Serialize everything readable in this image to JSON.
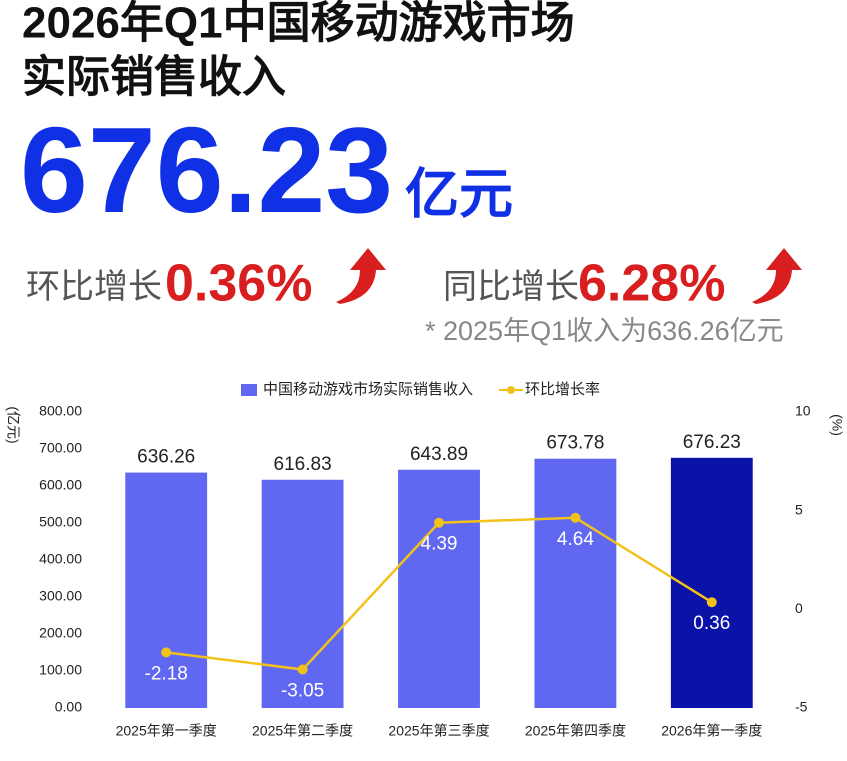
{
  "header": {
    "title_lines": [
      "2026年Q1中国移动游戏市场",
      "实际销售收入"
    ],
    "headline_value": "676.23",
    "headline_unit": "亿元",
    "qoq_label": "环比增长",
    "qoq_value": "0.36%",
    "yoy_label": "同比增长",
    "yoy_value": "6.28%",
    "footnote": "* 2025年Q1收入为636.26亿元"
  },
  "chart_data": {
    "type": "combo",
    "categories": [
      "2025年第一季度",
      "2025年第二季度",
      "2025年第三季度",
      "2025年第四季度",
      "2026年第一季度"
    ],
    "series": [
      {
        "name": "中国移动游戏市场实际销售收入",
        "type": "bar",
        "color": "#6068f2",
        "colors": [
          "#6068f2",
          "#6068f2",
          "#6068f2",
          "#6068f2",
          "#0a12a8"
        ],
        "values": [
          636.26,
          616.83,
          643.89,
          673.78,
          676.23
        ]
      },
      {
        "name": "环比增长率",
        "type": "line",
        "axis": "y2",
        "color": "#f2c21a",
        "values": [
          -2.18,
          -3.05,
          4.39,
          4.64,
          0.36
        ]
      }
    ],
    "y_label": "(亿元)",
    "y2_label": "(%)",
    "ylim": [
      0,
      800
    ],
    "yticks": [
      {
        "value": 0,
        "label": "0.00"
      },
      {
        "value": 100,
        "label": "100.00"
      },
      {
        "value": 200,
        "label": "200.00"
      },
      {
        "value": 300,
        "label": "300.00"
      },
      {
        "value": 400,
        "label": "400.00"
      },
      {
        "value": 500,
        "label": "500.00"
      },
      {
        "value": 600,
        "label": "600.00"
      },
      {
        "value": 700,
        "label": "700.00"
      },
      {
        "value": 800,
        "label": "800.00"
      }
    ],
    "y2lim": [
      -5,
      10
    ],
    "y2ticks": [
      -5,
      0,
      5,
      10
    ],
    "legend": "top",
    "grid": false
  }
}
